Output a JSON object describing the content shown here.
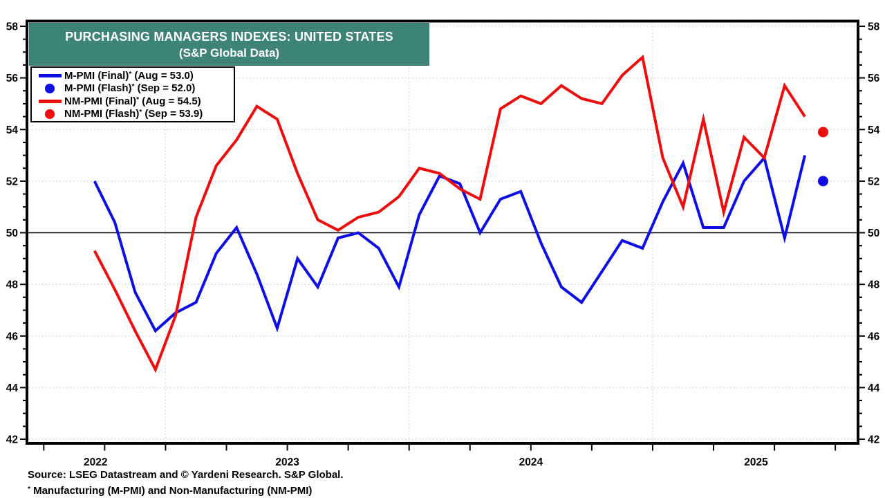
{
  "title": {
    "line1": "PURCHASING MANAGERS INDEXES: UNITED STATES",
    "line2": "(S&P Global Data)"
  },
  "legend": {
    "items": [
      {
        "name": "M-PMI (Final)",
        "sup": "*",
        "suffix": " (Aug = 53.0)",
        "marker": "line",
        "color": "#0d0de8"
      },
      {
        "name": "M-PMI (Flash)",
        "sup": "*",
        "suffix": " (Sep = 52.0)",
        "marker": "dot",
        "color": "#0d0de8"
      },
      {
        "name": "NM-PMI (Final)",
        "sup": "*",
        "suffix": " (Aug = 54.5)",
        "marker": "line",
        "color": "#ee0c0c"
      },
      {
        "name": "NM-PMI (Flash)",
        "sup": "*",
        "suffix": " (Sep = 53.9)",
        "marker": "dot",
        "color": "#ee0c0c"
      }
    ]
  },
  "chart_data": {
    "type": "line",
    "x": [
      "2022-09",
      "2022-10",
      "2022-11",
      "2022-12",
      "2023-01",
      "2023-02",
      "2023-03",
      "2023-04",
      "2023-05",
      "2023-06",
      "2023-07",
      "2023-08",
      "2023-09",
      "2023-10",
      "2023-11",
      "2023-12",
      "2024-01",
      "2024-02",
      "2024-03",
      "2024-04",
      "2024-05",
      "2024-06",
      "2024-07",
      "2024-08",
      "2024-09",
      "2024-10",
      "2024-11",
      "2024-12",
      "2025-01",
      "2025-02",
      "2025-03",
      "2025-04",
      "2025-05",
      "2025-06",
      "2025-07",
      "2025-08"
    ],
    "series": [
      {
        "name": "M-PMI (Final)",
        "color": "#0d0de8",
        "values": [
          52.0,
          50.4,
          47.7,
          46.2,
          46.9,
          47.3,
          49.2,
          50.2,
          48.4,
          46.3,
          49.0,
          47.9,
          49.8,
          50.0,
          49.4,
          47.9,
          50.7,
          52.2,
          51.9,
          50.0,
          51.3,
          51.6,
          49.6,
          47.9,
          47.3,
          48.5,
          49.7,
          49.4,
          51.2,
          52.7,
          50.2,
          50.2,
          52.0,
          52.9,
          49.8,
          53.0
        ]
      },
      {
        "name": "NM-PMI (Final)",
        "color": "#ee0c0c",
        "values": [
          49.3,
          47.8,
          46.2,
          44.7,
          46.8,
          50.6,
          52.6,
          53.6,
          54.9,
          54.4,
          52.3,
          50.5,
          50.1,
          50.6,
          50.8,
          51.4,
          52.5,
          52.3,
          51.7,
          51.3,
          54.8,
          55.3,
          55.0,
          55.7,
          55.2,
          55.0,
          56.1,
          56.8,
          52.9,
          51.0,
          54.4,
          50.8,
          53.7,
          52.9,
          55.7,
          54.5
        ]
      }
    ],
    "flash_points": [
      {
        "name": "M-PMI (Flash)",
        "x": "2025-09",
        "value": 52.0,
        "color": "#0d0de8"
      },
      {
        "name": "NM-PMI (Flash)",
        "x": "2025-09",
        "value": 53.9,
        "color": "#ee0c0c"
      }
    ],
    "ylim": [
      42,
      58
    ],
    "y_ticks": [
      58,
      56,
      54,
      52,
      50,
      48,
      46,
      44,
      42
    ],
    "y_minor_step": 0.5,
    "reference_line": 50,
    "year_labels": [
      "2022",
      "2023",
      "2024",
      "2025"
    ],
    "grid": {
      "horizontal": "dotted at each labeled tick",
      "vertical": "dotted at each January",
      "legend_position": "top-left"
    }
  },
  "footer": {
    "source_line": "Source: LSEG Datastream and © Yardeni Research. S&P Global.",
    "footnote_sup": "*",
    "footnote_rest": " Manufacturing (M-PMI) and Non-Manufacturing (NM-PMI)"
  },
  "colors": {
    "accent_teal": "#3d8477",
    "m_pmi_blue": "#0d0de8",
    "nm_pmi_red": "#ee0c0c",
    "gridline": "#d9d9d9"
  }
}
